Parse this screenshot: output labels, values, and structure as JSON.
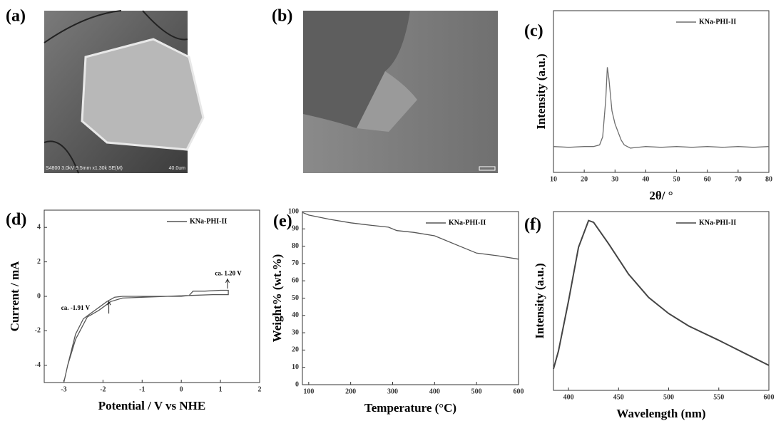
{
  "images": [
    {
      "label": "(a)",
      "caption": "S4800 3.0kV 9.5mm x1.30k SE(M)",
      "scale": "40.0um"
    },
    {
      "label": "(b)"
    }
  ],
  "chart_data": [
    {
      "type": "line",
      "label": "(c)",
      "xlabel": "2θ/ °",
      "ylabel": "Intensity (a.u.)",
      "x": [
        10,
        15,
        20,
        23,
        25,
        26,
        27,
        27.5,
        28,
        29,
        30,
        31,
        32,
        33,
        35,
        40,
        45,
        50,
        55,
        60,
        65,
        70,
        75,
        80
      ],
      "series": [
        {
          "name": "KNa-PHI-II",
          "color": "#6e6e6e",
          "values": [
            16,
            15.5,
            16,
            16,
            17,
            22,
            45,
            65,
            58,
            38,
            30,
            25,
            20,
            17,
            15,
            16,
            15.5,
            16,
            15.5,
            16,
            15.5,
            16,
            15.5,
            16
          ]
        }
      ],
      "xlim": [
        10,
        80
      ],
      "xticks": [
        10,
        20,
        30,
        40,
        50,
        60,
        70,
        80
      ],
      "ylim": [
        0,
        100
      ],
      "legend": "top-right"
    },
    {
      "type": "line",
      "label": "(d)",
      "xlabel": "Potential / V vs NHE",
      "ylabel": "Current / mA",
      "x": [
        -3.0,
        -2.9,
        -2.7,
        -2.5,
        -2.2,
        -1.9,
        -1.7,
        -1.5,
        0,
        0.2,
        0.3,
        0.6,
        1.0,
        1.2,
        1.2,
        0.8,
        0.2,
        -1.5,
        -1.8,
        -2.1,
        -2.4,
        -2.7,
        -2.9,
        -3.0
      ],
      "series": [
        {
          "name": "KNa-PHI-II",
          "color": "#555555",
          "values": [
            -5,
            -4,
            -2.2,
            -1.3,
            -0.8,
            -0.3,
            -0.05,
            0,
            0,
            0.05,
            0.3,
            0.3,
            0.35,
            0.35,
            0.1,
            0.1,
            0.05,
            -0.1,
            -0.3,
            -0.8,
            -1.2,
            -2.5,
            -4,
            -5
          ]
        }
      ],
      "annotations": [
        "ca. -1.91 V",
        "ca. 1.20 V"
      ],
      "xlim": [
        -3.5,
        2
      ],
      "xticks": [
        -3,
        -2,
        -1,
        0,
        1,
        2
      ],
      "ylim": [
        -5,
        5
      ],
      "yticks": [
        -4,
        -2,
        0,
        2,
        4
      ],
      "legend": "top-right"
    },
    {
      "type": "line",
      "label": "(e)",
      "xlabel": "Temperature (°C)",
      "ylabel": "Weight% (wt.%)",
      "x": [
        85,
        100,
        150,
        200,
        250,
        290,
        310,
        350,
        400,
        450,
        500,
        550,
        600
      ],
      "series": [
        {
          "name": "KNa-PHI-II",
          "color": "#555555",
          "values": [
            99.5,
            98,
            95.5,
            93.5,
            92,
            91,
            89,
            88,
            86,
            81,
            76,
            74.5,
            72.5
          ]
        }
      ],
      "xlim": [
        85,
        600
      ],
      "xticks": [
        100,
        200,
        300,
        400,
        500,
        600
      ],
      "ylim": [
        0,
        100
      ],
      "yticks": [
        0,
        10,
        20,
        30,
        40,
        50,
        60,
        70,
        80,
        90,
        100
      ],
      "legend": "top-right"
    },
    {
      "type": "line",
      "label": "(f)",
      "xlabel": "Wavelength (nm)",
      "ylabel": "Intensity (a.u.)",
      "x": [
        385,
        390,
        400,
        410,
        420,
        425,
        440,
        460,
        480,
        500,
        520,
        550,
        575,
        600
      ],
      "series": [
        {
          "name": "KNa-PHI-II",
          "color": "#444444",
          "values": [
            12,
            22,
            50,
            80,
            95,
            94,
            82,
            65,
            52,
            43,
            36,
            28,
            21,
            14
          ]
        }
      ],
      "xlim": [
        385,
        600
      ],
      "xticks": [
        400,
        450,
        500,
        550,
        600
      ],
      "ylim": [
        0,
        100
      ],
      "legend": "top-right"
    }
  ]
}
